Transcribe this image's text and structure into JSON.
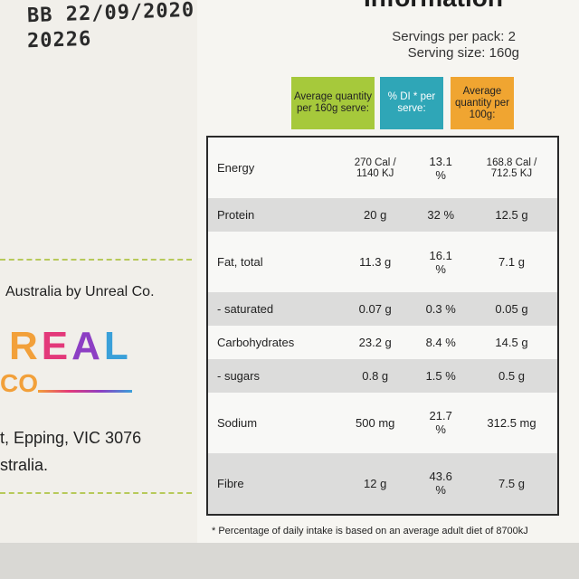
{
  "pack": {
    "best_before": "BB 22/09/2020",
    "lot_code": "20226",
    "section_title": "Information",
    "servings_per_pack": "Servings per pack: 2",
    "serving_size": "Serving size: 160g"
  },
  "headers": {
    "per_serve": "Average quantity per 160g serve:",
    "di_per_serve": "% DI * per serve:",
    "per_100g": "Average quantity per 100g:"
  },
  "rows": [
    {
      "name": "Energy",
      "per_serve": "270 Cal / 1140 KJ",
      "di": "13.1 %",
      "per_100g": "168.8 Cal / 712.5 KJ"
    },
    {
      "name": "Protein",
      "per_serve": "20 g",
      "di": "32 %",
      "per_100g": "12.5 g"
    },
    {
      "name": "Fat, total",
      "per_serve": "11.3 g",
      "di": "16.1 %",
      "per_100g": "7.1 g"
    },
    {
      "name": "- saturated",
      "per_serve": "0.07 g",
      "di": "0.3 %",
      "per_100g": "0.05 g"
    },
    {
      "name": "Carbohydrates",
      "per_serve": "23.2 g",
      "di": "8.4 %",
      "per_100g": "14.5 g"
    },
    {
      "name": "- sugars",
      "per_serve": "0.8 g",
      "di": "1.5 %",
      "per_100g": "0.5 g"
    },
    {
      "name": "Sodium",
      "per_serve": "500 mg",
      "di": "21.7 %",
      "per_100g": "312.5 mg"
    },
    {
      "name": "Fibre",
      "per_serve": "12 g",
      "di": "43.6 %",
      "per_100g": "7.5 g"
    }
  ],
  "footnote": "* Percentage of daily intake is based on an average adult diet of 8700kJ",
  "brand": {
    "origin": "Australia by Unreal Co.",
    "logo_text": "REAL",
    "logo_sub": "CO",
    "address_line1": "t, Epping, VIC 3076",
    "address_line2": "stralia."
  },
  "colors": {
    "green": "#a6c93b",
    "blue": "#2fa6b7",
    "orange": "#f0a531"
  }
}
